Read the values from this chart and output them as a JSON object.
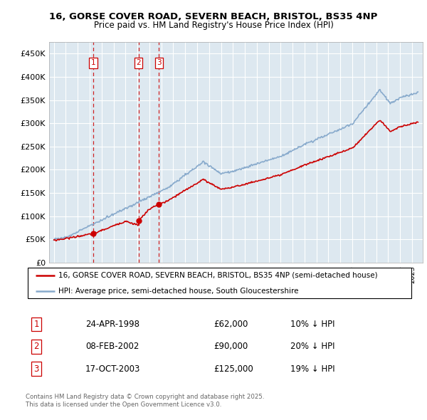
{
  "title1": "16, GORSE COVER ROAD, SEVERN BEACH, BRISTOL, BS35 4NP",
  "title2": "Price paid vs. HM Land Registry's House Price Index (HPI)",
  "legend_line1": "16, GORSE COVER ROAD, SEVERN BEACH, BRISTOL, BS35 4NP (semi-detached house)",
  "legend_line2": "HPI: Average price, semi-detached house, South Gloucestershire",
  "transactions": [
    {
      "num": 1,
      "date": "24-APR-1998",
      "price": 62000,
      "hpi_pct": "10% ↓ HPI",
      "year": 1998.3
    },
    {
      "num": 2,
      "date": "08-FEB-2002",
      "price": 90000,
      "hpi_pct": "20% ↓ HPI",
      "year": 2002.1
    },
    {
      "num": 3,
      "date": "17-OCT-2003",
      "price": 125000,
      "hpi_pct": "19% ↓ HPI",
      "year": 2003.8
    }
  ],
  "footer": "Contains HM Land Registry data © Crown copyright and database right 2025.\nThis data is licensed under the Open Government Licence v3.0.",
  "ylabel_ticks": [
    "£0",
    "£50K",
    "£100K",
    "£150K",
    "£200K",
    "£250K",
    "£300K",
    "£350K",
    "£400K",
    "£450K"
  ],
  "ytick_values": [
    0,
    50000,
    100000,
    150000,
    200000,
    250000,
    300000,
    350000,
    400000,
    450000
  ],
  "ylim": [
    0,
    475000
  ],
  "red_color": "#cc0000",
  "blue_color": "#88aacc",
  "background_color": "#ffffff",
  "plot_bg_color": "#dde8f0",
  "grid_color": "#ffffff"
}
